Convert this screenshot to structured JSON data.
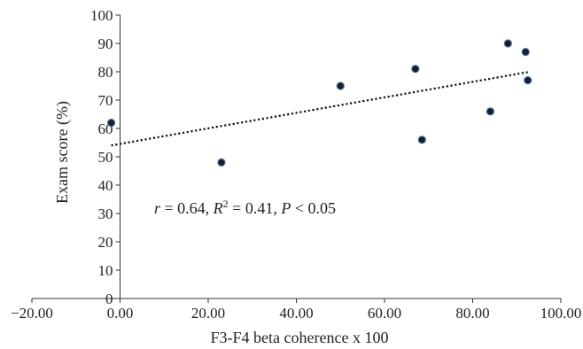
{
  "chart_data": {
    "type": "scatter",
    "title": "",
    "xlabel": "F3-F4 beta coherence x 100",
    "ylabel": "Exam score (%)",
    "xlim": [
      -20,
      100
    ],
    "ylim": [
      0,
      100
    ],
    "x_ticks": [
      -20,
      0,
      20,
      40,
      60,
      80,
      100
    ],
    "x_tick_labels": [
      "−20.00",
      "0.00",
      "20.00",
      "40.00",
      "60.00",
      "80.00",
      "100.00"
    ],
    "y_ticks": [
      0,
      10,
      20,
      30,
      40,
      50,
      60,
      70,
      80,
      90,
      100
    ],
    "y_tick_labels": [
      "0",
      "10",
      "20",
      "30",
      "40",
      "50",
      "60",
      "70",
      "80",
      "90",
      "100"
    ],
    "grid": false,
    "legend": "none",
    "series": [
      {
        "points": [
          {
            "x": -2,
            "y": 62
          },
          {
            "x": 23,
            "y": 48
          },
          {
            "x": 50,
            "y": 75
          },
          {
            "x": 67,
            "y": 81
          },
          {
            "x": 68.5,
            "y": 56
          },
          {
            "x": 84,
            "y": 66
          },
          {
            "x": 88,
            "y": 90
          },
          {
            "x": 92,
            "y": 87
          },
          {
            "x": 92.5,
            "y": 77
          }
        ]
      }
    ],
    "trendline": {
      "style": "dotted",
      "from": {
        "x": -2,
        "y": 54
      },
      "to": {
        "x": 93,
        "y": 80
      }
    },
    "annotation": {
      "r": "0.64",
      "r2": "0.41",
      "p": "0.05"
    },
    "colors": {
      "marker": "#0f2033",
      "marker_edge": "#4f6c8c",
      "line": "#111111",
      "axis": "#333333"
    }
  }
}
